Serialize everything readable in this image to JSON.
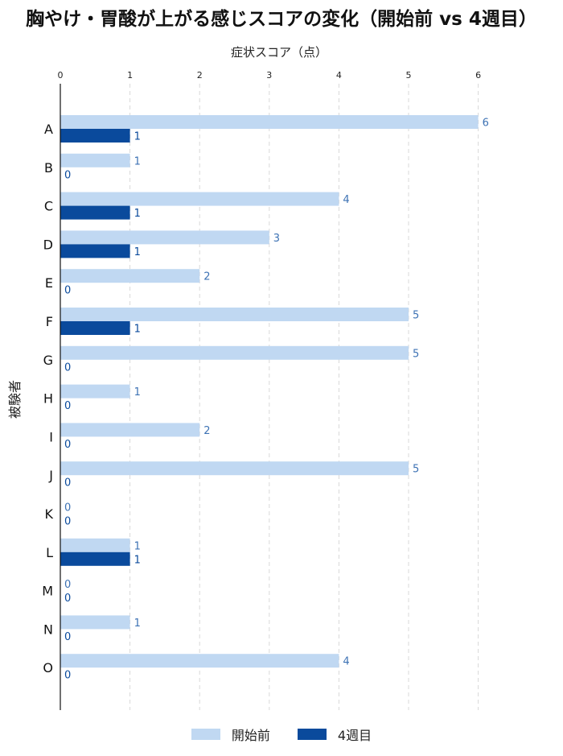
{
  "chart_data": {
    "type": "bar",
    "orientation": "horizontal",
    "title": "胸やけ・胃酸が上がる感じスコアの変化（開始前 vs 4週目）",
    "xlabel": "症状スコア（点）",
    "ylabel": "被験者",
    "xlim": [
      0,
      7
    ],
    "xticks": [
      "0",
      "1",
      "2",
      "3",
      "4",
      "5",
      "6"
    ],
    "grid": "x-dashed",
    "legend_position": "bottom-center",
    "categories": [
      "A",
      "B",
      "C",
      "D",
      "E",
      "F",
      "G",
      "H",
      "I",
      "J",
      "K",
      "L",
      "M",
      "N",
      "O"
    ],
    "series": [
      {
        "name": "開始前",
        "color": "#c0d8f2",
        "label_color": "#3d72b4",
        "values": [
          6,
          1,
          4,
          3,
          2,
          5,
          5,
          1,
          2,
          5,
          0,
          1,
          0,
          1,
          4
        ]
      },
      {
        "name": "4週目",
        "color": "#0a4a9c",
        "label_color": "#0a4a9c",
        "values": [
          1,
          0,
          1,
          1,
          0,
          1,
          0,
          0,
          0,
          0,
          0,
          1,
          0,
          0,
          0
        ]
      }
    ]
  }
}
